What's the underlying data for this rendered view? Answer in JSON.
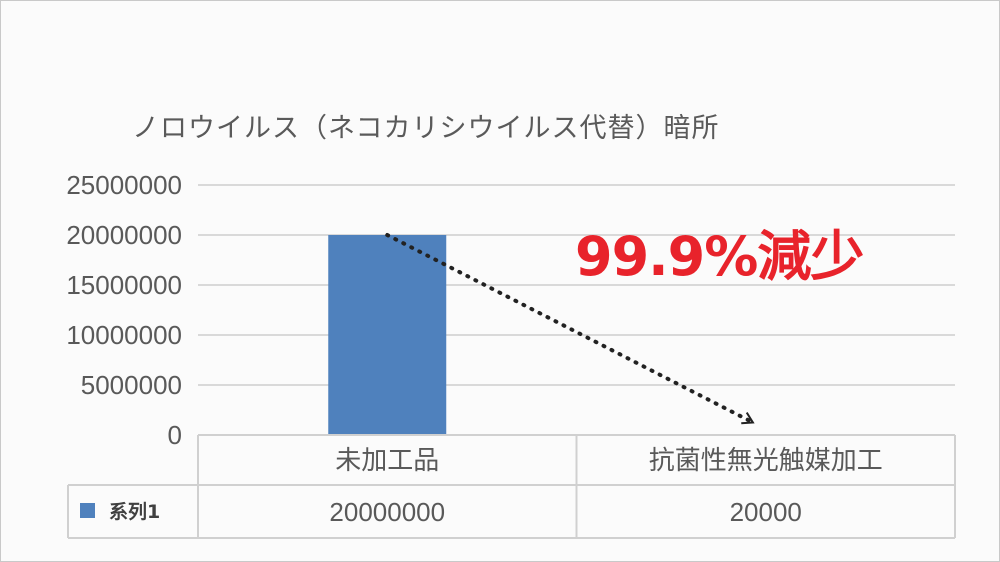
{
  "chart_data": {
    "type": "bar",
    "title": "ノロウイルス（ネコカリシウイルス代替）暗所",
    "categories": [
      "未加工品",
      "抗菌性無光触媒加工"
    ],
    "series": [
      {
        "name": "系列1",
        "values": [
          20000000,
          20000
        ],
        "color": "#4f81bd"
      }
    ],
    "ylim": [
      0,
      25000000
    ],
    "yticks": [
      0,
      5000000,
      10000000,
      15000000,
      20000000,
      25000000
    ],
    "ytick_labels": [
      "0",
      "5000000",
      "10000000",
      "15000000",
      "20000000",
      "25000000"
    ],
    "value_labels": [
      "20000000",
      "20000"
    ],
    "grid": true,
    "legend_placement": "data-table",
    "annotation": {
      "text": "99.9%減少",
      "color": "#e8232b"
    }
  }
}
